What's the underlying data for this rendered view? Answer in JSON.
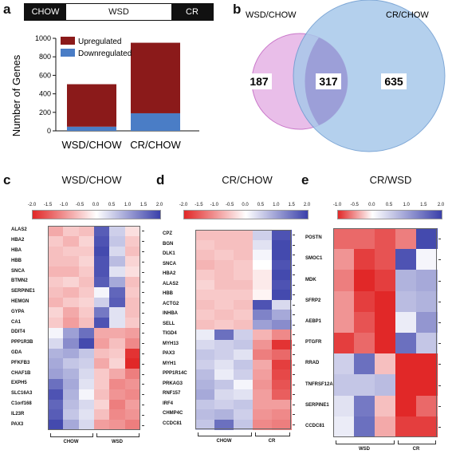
{
  "panel_a": {
    "label": "a",
    "condition_bar": [
      "CHOW",
      "WSD",
      "CR"
    ],
    "chart_data": {
      "type": "bar",
      "categories": [
        "WSD/CHOW",
        "CR/CHOW"
      ],
      "series": [
        {
          "name": "Downregulated",
          "values": [
            45,
            190
          ],
          "color": "#4a7dc6"
        },
        {
          "name": "Upregulated",
          "values": [
            459,
            762
          ],
          "color": "#8b1a1a"
        }
      ],
      "ylabel": "Number of Genes",
      "ylim": [
        0,
        1000
      ],
      "yticks": [
        "0",
        "200",
        "400",
        "600",
        "800",
        "1000"
      ],
      "stacked": true,
      "legend": [
        "Upregulated",
        "Downregulated"
      ],
      "legend_placement": "top-right"
    }
  },
  "panel_b": {
    "label": "b",
    "left_set": "WSD/CHOW",
    "right_set": "CR/CHOW",
    "left_only": "187",
    "overlap": "317",
    "right_only": "635"
  },
  "panel_c": {
    "label": "c",
    "title": "WSD/CHOW",
    "scale_ticks": [
      "-2.0",
      "-1.5",
      "-1.0",
      "-0.5",
      "0.0",
      "0.5",
      "1.0",
      "1.5",
      "2.0"
    ],
    "genes": [
      "ALAS2",
      "HBA2",
      "HBA",
      "HBB",
      "SNCA",
      "BTMN2",
      "SERPINE1",
      "HEMGN",
      "GYPA",
      "CA1",
      "DDIT4",
      "PPP1R3B",
      "GDA",
      "PFKFB3",
      "CHAF1B",
      "EXPH5",
      "SLC16A3",
      "C1orf168",
      "IL23R",
      "PAX3"
    ],
    "groups": [
      "CHOW",
      "WSD"
    ],
    "values": [
      [
        -0.8,
        -0.5,
        -0.6,
        1.7,
        0.5,
        -0.3
      ],
      [
        -0.5,
        -0.7,
        -0.4,
        1.8,
        0.6,
        -0.5
      ],
      [
        -0.6,
        -0.5,
        -0.5,
        1.9,
        0.4,
        -0.6
      ],
      [
        -0.6,
        -0.6,
        -0.4,
        1.8,
        0.7,
        -0.4
      ],
      [
        -0.7,
        -0.7,
        -0.5,
        1.8,
        0.3,
        -0.3
      ],
      [
        -0.5,
        -0.4,
        -0.6,
        1.7,
        0.9,
        -0.6
      ],
      [
        -0.6,
        -0.7,
        -0.5,
        0.1,
        1.6,
        -0.5
      ],
      [
        -0.7,
        -0.5,
        -0.4,
        0.5,
        1.7,
        -0.6
      ],
      [
        -0.4,
        -0.8,
        -0.5,
        1.4,
        0.3,
        -0.6
      ],
      [
        -0.5,
        -0.9,
        -0.6,
        1.8,
        0.3,
        -0.5
      ],
      [
        0.1,
        1.0,
        1.5,
        -0.8,
        -0.8,
        -0.9
      ],
      [
        0.4,
        1.2,
        1.9,
        -0.9,
        -0.6,
        -1.1
      ],
      [
        0.8,
        0.9,
        0.6,
        -0.6,
        -0.5,
        -1.9
      ],
      [
        0.9,
        0.6,
        0.5,
        -0.8,
        -0.4,
        -2.0
      ],
      [
        1.0,
        0.8,
        0.4,
        -0.5,
        -0.8,
        -1.2
      ],
      [
        1.5,
        0.9,
        0.3,
        -0.5,
        -1.1,
        -1.0
      ],
      [
        1.8,
        0.8,
        0.1,
        -0.6,
        -1.0,
        -1.1
      ],
      [
        1.6,
        0.7,
        0.4,
        -0.4,
        -1.2,
        -0.9
      ],
      [
        1.7,
        0.6,
        0.3,
        -0.6,
        -1.1,
        -1.0
      ],
      [
        1.9,
        0.9,
        0.4,
        -0.9,
        -1.0,
        -1.2
      ]
    ]
  },
  "panel_d": {
    "label": "d",
    "title": "CR/CHOW",
    "scale_ticks": [
      "-2.0",
      "-1.5",
      "-1.0",
      "-0.5",
      "0.0",
      "0.5",
      "1.0",
      "1.5",
      "2.0"
    ],
    "genes": [
      "CPZ",
      "BGN",
      "DLK1",
      "SNCA",
      "HBA2",
      "ALAS2",
      "HBB",
      "ACTG2",
      "INHBA",
      "SELL",
      "TIGD4",
      "MYH13",
      "PAX3",
      "MYH1",
      "PPP1R14C",
      "PRKAG3",
      "RNF157",
      "IRF4",
      "CHMP4C",
      "CCDC81"
    ],
    "groups": [
      "CHOW",
      "CR"
    ],
    "values": [
      [
        -0.6,
        -0.6,
        -0.6,
        0.5,
        1.8
      ],
      [
        -0.5,
        -0.6,
        -0.6,
        0.3,
        1.9
      ],
      [
        -0.6,
        -0.5,
        -0.6,
        0.1,
        1.9
      ],
      [
        -0.7,
        -0.6,
        -0.5,
        0.0,
        1.8
      ],
      [
        -0.5,
        -0.6,
        -0.5,
        -0.2,
        1.9
      ],
      [
        -0.4,
        -0.6,
        -0.6,
        -0.2,
        1.8
      ],
      [
        -0.5,
        -0.5,
        -0.5,
        -0.1,
        1.9
      ],
      [
        -0.6,
        -0.5,
        -0.6,
        1.8,
        0.4
      ],
      [
        -0.5,
        -0.6,
        -0.5,
        1.3,
        0.9
      ],
      [
        -0.6,
        -0.5,
        -0.6,
        1.0,
        1.2
      ],
      [
        0.2,
        1.5,
        0.5,
        -0.7,
        -1.1
      ],
      [
        0.4,
        0.5,
        0.6,
        -1.0,
        -1.9
      ],
      [
        0.6,
        0.5,
        0.3,
        -1.2,
        -1.4
      ],
      [
        0.5,
        0.3,
        0.6,
        -0.8,
        -1.8
      ],
      [
        0.7,
        0.2,
        0.5,
        -0.9,
        -1.7
      ],
      [
        0.8,
        0.6,
        0.1,
        -1.0,
        -1.6
      ],
      [
        0.9,
        0.4,
        0.3,
        -0.9,
        -1.5
      ],
      [
        0.6,
        0.5,
        0.6,
        -0.9,
        -0.9
      ],
      [
        0.7,
        0.8,
        0.5,
        -1.0,
        -1.1
      ],
      [
        0.6,
        1.5,
        0.6,
        -1.1,
        -1.2
      ]
    ]
  },
  "panel_e": {
    "label": "e",
    "title": "CR/WSD",
    "scale_ticks": [
      "-1.0",
      "-0.5",
      "0.0",
      "0.5",
      "1.0",
      "1.5",
      "2.0"
    ],
    "genes": [
      "POSTN",
      "SMOC1",
      "MDK",
      "SFRP2",
      "AEBP1",
      "PTGFR",
      "RRAD",
      "TNFRSF12A",
      "SERPINE1",
      "CCDC81"
    ],
    "groups": [
      "WSD",
      "CR"
    ],
    "values": [
      [
        -0.7,
        -0.7,
        -0.8,
        -0.6,
        1.9
      ],
      [
        -0.5,
        -0.9,
        -0.8,
        1.8,
        0.1
      ],
      [
        -0.6,
        -1.0,
        -0.9,
        0.8,
        0.9
      ],
      [
        -0.5,
        -0.9,
        -1.0,
        0.7,
        0.8
      ],
      [
        -0.5,
        -0.8,
        -1.1,
        0.2,
        1.1
      ],
      [
        -0.9,
        -0.7,
        -1.0,
        1.5,
        0.6
      ],
      [
        0.5,
        1.5,
        -0.3,
        -1.0,
        -1.0
      ],
      [
        0.6,
        0.6,
        0.7,
        -1.0,
        -1.1
      ],
      [
        0.3,
        1.4,
        -0.3,
        -1.1,
        -0.7
      ],
      [
        0.2,
        1.5,
        -0.4,
        -0.9,
        -0.9
      ]
    ]
  }
}
